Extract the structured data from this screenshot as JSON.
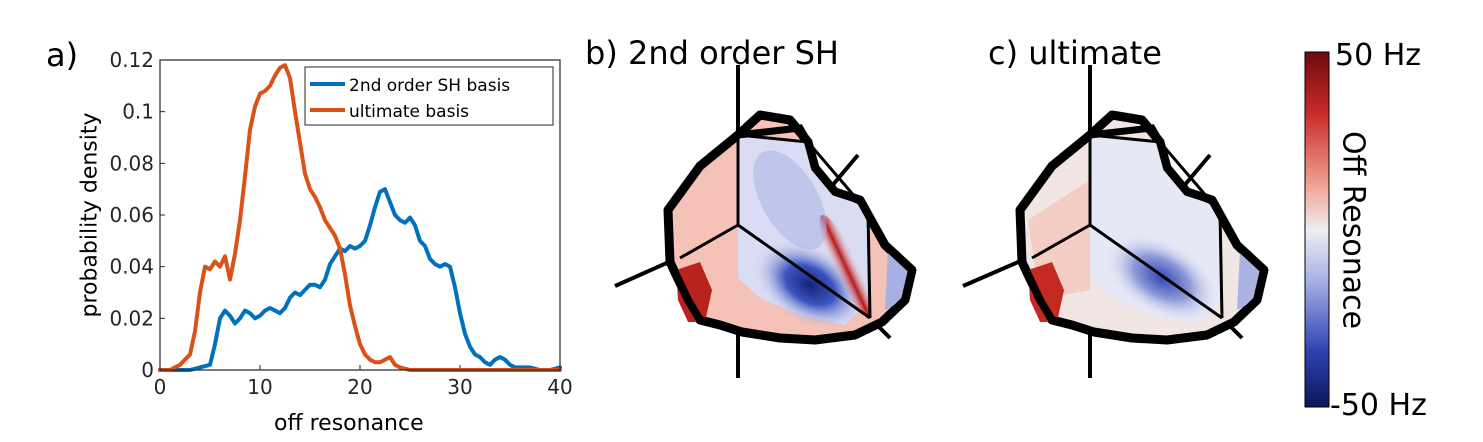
{
  "panels": {
    "a_label": "a)",
    "b_label": "b) 2nd order SH",
    "c_label": "c) ultimate"
  },
  "colorbar": {
    "max_label": "50 Hz",
    "min_label": "-50 Hz",
    "title": "Off Resonace",
    "colors": [
      "#6b0b0b",
      "#c92a2a",
      "#f0a595",
      "#eeeef2",
      "#a9b3e6",
      "#3043b4",
      "#0c1559"
    ]
  },
  "chart_data": {
    "type": "line",
    "xlabel": "off resonance",
    "ylabel": "probability density",
    "xlim": [
      0,
      40
    ],
    "ylim": [
      0,
      0.12
    ],
    "xticks": [
      "0",
      "10",
      "20",
      "30",
      "40"
    ],
    "yticks": [
      "0",
      "0.02",
      "0.04",
      "0.06",
      "0.08",
      "0.1",
      "0.12"
    ],
    "legend_position": "top-right",
    "series": [
      {
        "name": "2nd order SH basis",
        "color": "#0072bd",
        "x": [
          0,
          3,
          4,
          5,
          5.5,
          6,
          6.5,
          7,
          7.5,
          8,
          8.5,
          9,
          9.5,
          10,
          10.5,
          11,
          11.5,
          12,
          12.5,
          13,
          13.5,
          14,
          14.5,
          15,
          15.5,
          16,
          16.5,
          17,
          17.5,
          18,
          18.5,
          19,
          19.5,
          20,
          20.5,
          21,
          21.5,
          22,
          22.5,
          23,
          23.5,
          24,
          24.5,
          25,
          25.5,
          26,
          26.5,
          27,
          27.5,
          28,
          28.5,
          29,
          29.5,
          30,
          30.5,
          31,
          31.5,
          32,
          32.5,
          33,
          33.5,
          34,
          34.5,
          35,
          35.5,
          36,
          37,
          38,
          39,
          40
        ],
        "y": [
          0,
          0,
          0.001,
          0.002,
          0.01,
          0.02,
          0.023,
          0.021,
          0.018,
          0.02,
          0.023,
          0.022,
          0.02,
          0.021,
          0.023,
          0.024,
          0.023,
          0.022,
          0.024,
          0.028,
          0.03,
          0.029,
          0.031,
          0.033,
          0.033,
          0.032,
          0.035,
          0.041,
          0.044,
          0.047,
          0.046,
          0.048,
          0.047,
          0.048,
          0.05,
          0.056,
          0.063,
          0.069,
          0.07,
          0.065,
          0.06,
          0.058,
          0.057,
          0.059,
          0.056,
          0.05,
          0.048,
          0.043,
          0.041,
          0.04,
          0.041,
          0.04,
          0.032,
          0.022,
          0.014,
          0.009,
          0.006,
          0.005,
          0.003,
          0.002,
          0.004,
          0.005,
          0.004,
          0.002,
          0.001,
          0.001,
          0.001,
          0,
          0,
          0.001
        ]
      },
      {
        "name": "ultimate basis",
        "color": "#d95319",
        "x": [
          0,
          1,
          1.5,
          2,
          2.5,
          3,
          3.5,
          4,
          4.5,
          5,
          5.5,
          6,
          6.5,
          7,
          7.5,
          8,
          8.5,
          9,
          9.5,
          10,
          10.5,
          11,
          11.5,
          12,
          12.5,
          13,
          13.5,
          14,
          14.5,
          15,
          15.5,
          16,
          16.5,
          17,
          17.5,
          18,
          18.5,
          19,
          19.5,
          20,
          20.5,
          21,
          21.5,
          22,
          22.5,
          23,
          23.5,
          24,
          25,
          30,
          35,
          40
        ],
        "y": [
          0,
          0,
          0.001,
          0.002,
          0.004,
          0.006,
          0.015,
          0.03,
          0.04,
          0.039,
          0.042,
          0.04,
          0.044,
          0.035,
          0.045,
          0.058,
          0.075,
          0.093,
          0.102,
          0.107,
          0.108,
          0.11,
          0.114,
          0.117,
          0.118,
          0.113,
          0.1,
          0.088,
          0.076,
          0.07,
          0.067,
          0.063,
          0.058,
          0.055,
          0.052,
          0.047,
          0.037,
          0.025,
          0.017,
          0.01,
          0.006,
          0.004,
          0.003,
          0.003,
          0.004,
          0.005,
          0.002,
          0.001,
          0,
          0,
          0,
          0
        ]
      }
    ]
  }
}
